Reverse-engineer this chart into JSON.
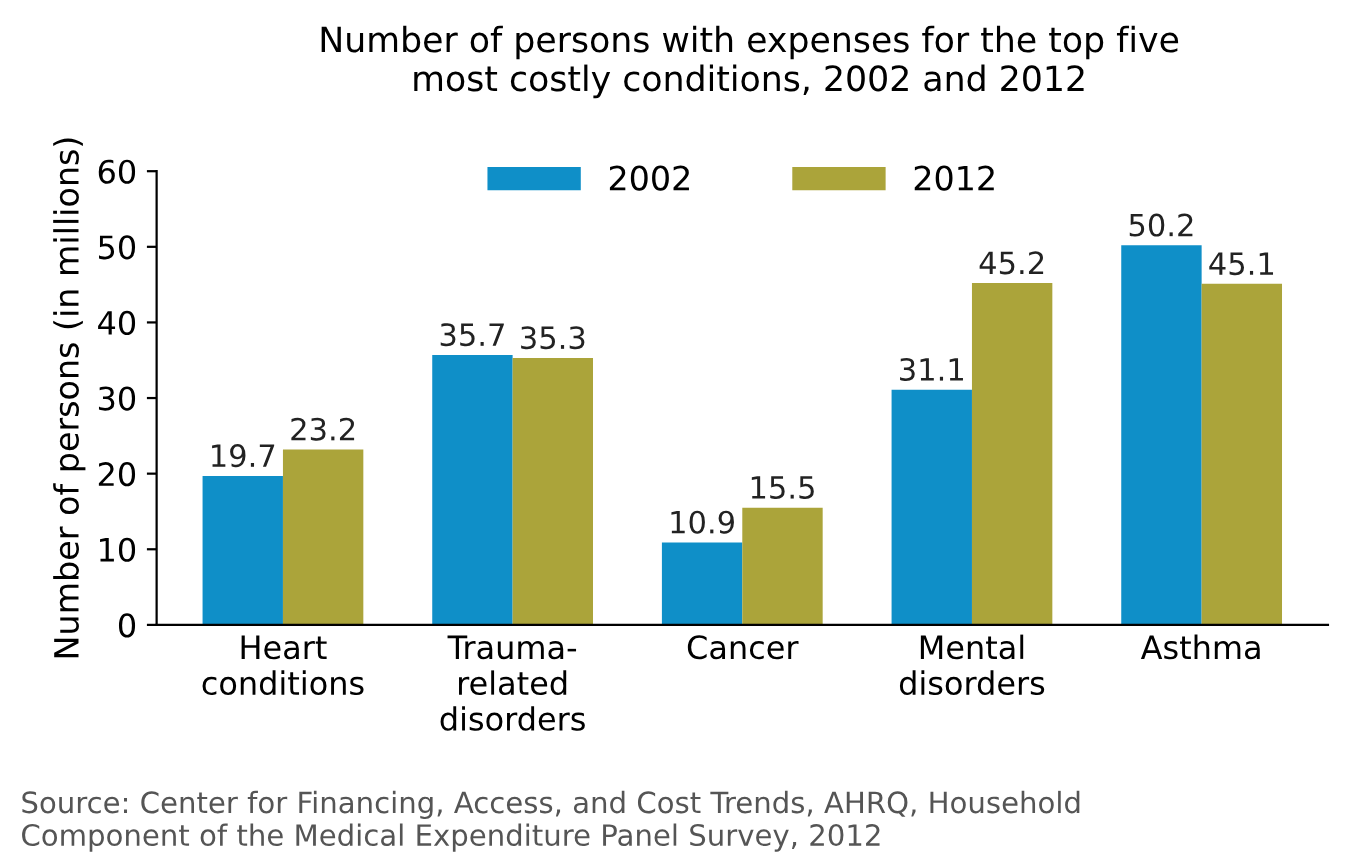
{
  "chart_data": {
    "type": "bar",
    "title": "Number of persons with expenses for the top five\nmost costly conditions, 2002 and 2012",
    "ylabel": "Number of persons (in millions)",
    "categories": [
      "Heart\nconditions",
      "Trauma-\nrelated\ndisorders",
      "Cancer",
      "Mental\ndisorders",
      "Asthma"
    ],
    "series": [
      {
        "name": "2002",
        "color": "#0f8fc8",
        "values": [
          19.7,
          35.7,
          10.9,
          31.1,
          50.2
        ]
      },
      {
        "name": "2012",
        "color": "#aba43a",
        "values": [
          23.2,
          35.3,
          15.5,
          45.2,
          45.1
        ]
      }
    ],
    "ylim": [
      0,
      60
    ],
    "yticks": [
      0,
      10,
      20,
      30,
      40,
      50,
      60
    ],
    "data_labels": true,
    "grid": false,
    "legend": "top",
    "annotations": [
      "Source: Center for Financing, Access, and Cost Trends, AHRQ, Household\nComponent of the Medical Expenditure Panel Survey, 2012"
    ]
  }
}
